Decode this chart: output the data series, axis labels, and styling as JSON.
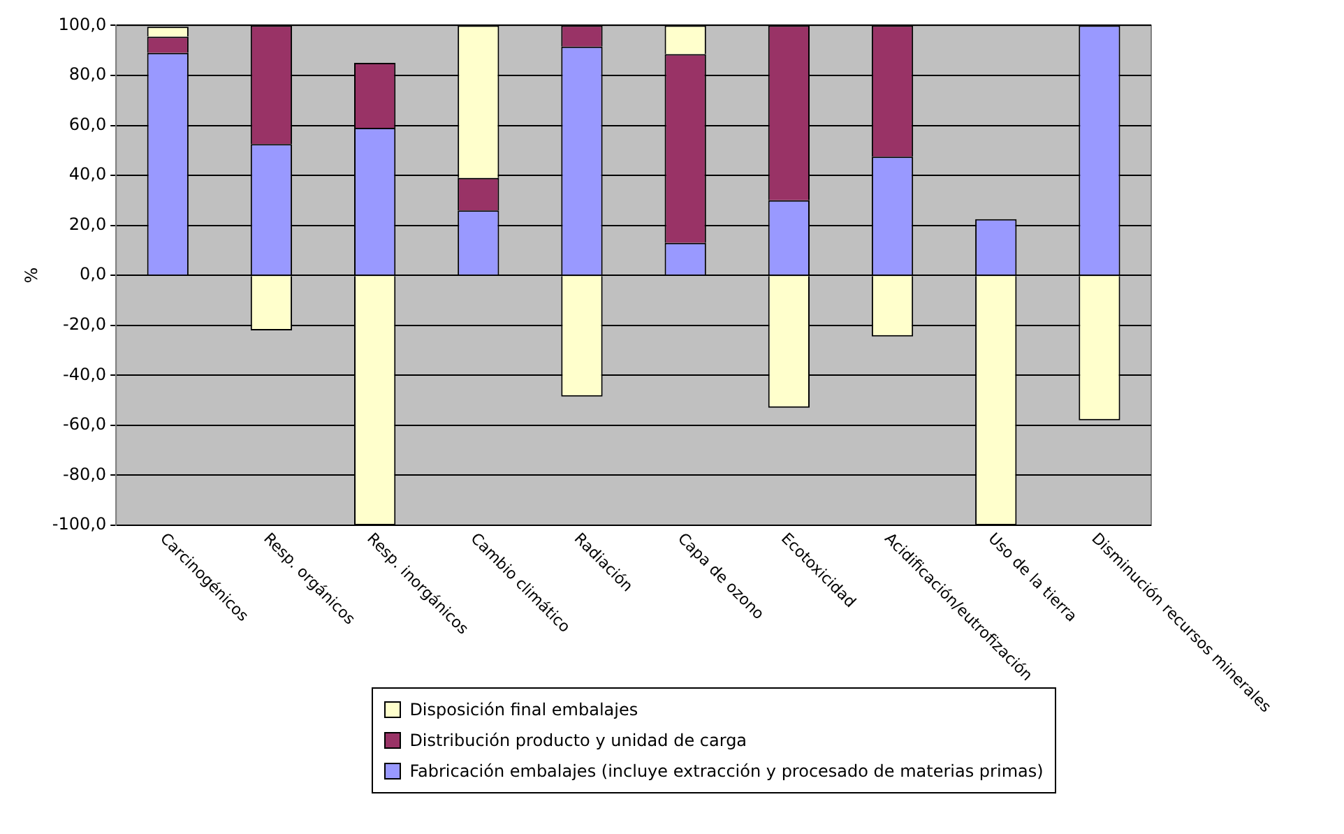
{
  "chart_data": {
    "type": "bar",
    "stacked": true,
    "ylabel": "%",
    "categories": [
      "Carcinogénicos",
      "Resp. orgánicos",
      "Resp. inorgánicos",
      "Cambio climático",
      "Radiación",
      "Capa de ozono",
      "Ecotoxicidad",
      "Acidificación/eutrofización",
      "Uso de la tierra",
      "Disminución recursos minerales"
    ],
    "series": [
      {
        "name": "Fabricación embalajes (incluye extracción y procesado de materias primas)",
        "color": "#9999ff",
        "values": [
          89,
          52.5,
          59,
          26,
          91.5,
          13,
          30,
          47.5,
          22.5,
          100
        ]
      },
      {
        "name": "Distribución producto y unidad de carga",
        "color": "#993366",
        "values": [
          6.5,
          47.5,
          26,
          13,
          8.5,
          75.5,
          70,
          52.5,
          0,
          0
        ]
      },
      {
        "name": "Disposición final embalajes",
        "color": "#ffffcc",
        "values": [
          4,
          -22,
          -100,
          61,
          -48.5,
          11.5,
          -53,
          -24.5,
          -100,
          -58
        ]
      }
    ],
    "ylim": [
      -100,
      100
    ],
    "yticks": [
      {
        "value": -100,
        "label": "-100,0"
      },
      {
        "value": -80,
        "label": "-80,0"
      },
      {
        "value": -60,
        "label": "-60,0"
      },
      {
        "value": -40,
        "label": "-40,0"
      },
      {
        "value": -20,
        "label": "-20,0"
      },
      {
        "value": 0,
        "label": "0,0"
      },
      {
        "value": 20,
        "label": "20,0"
      },
      {
        "value": 40,
        "label": "40,0"
      },
      {
        "value": 60,
        "label": "60,0"
      },
      {
        "value": 80,
        "label": "80,0"
      },
      {
        "value": 100,
        "label": "100,0"
      }
    ],
    "grid": "y",
    "legend": "bottom"
  }
}
